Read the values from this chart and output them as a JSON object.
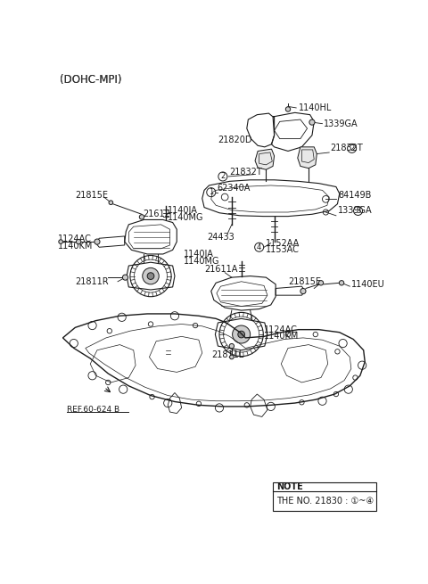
{
  "background": "#ffffff",
  "dark": "#1a1a1a",
  "gray": "#888888",
  "light_gray": "#cccccc",
  "title": "(DOHC-MPI)",
  "note_line1": "NOTE",
  "note_line2": "THE NO. 21830 : ①~④",
  "fs": 7.0,
  "lw": 0.8
}
